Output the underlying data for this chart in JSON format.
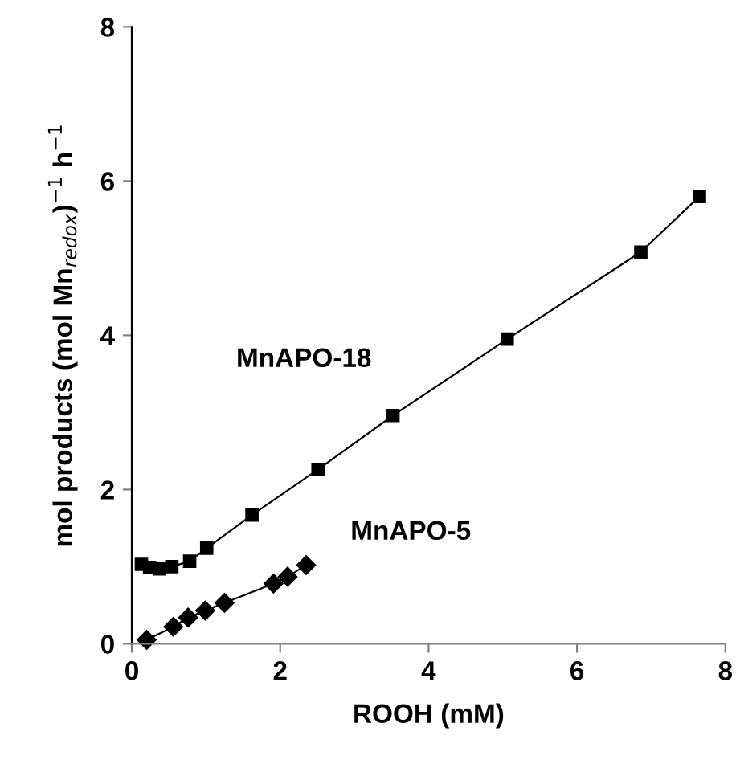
{
  "chart_data": {
    "type": "line",
    "xlabel": "ROOH (mM)",
    "ylabel": "mol products (mol Mn$_{redox}$)$^{−1}$ h$^{−1}$",
    "xlim": [
      0,
      8
    ],
    "ylim": [
      0,
      8
    ],
    "xticks": [
      0,
      2,
      4,
      6,
      8
    ],
    "yticks": [
      0,
      2,
      4,
      6,
      8
    ],
    "grid": false,
    "legend": false,
    "line_style": "solid",
    "series": [
      {
        "name": "MnAPO-18",
        "color": "#000000",
        "marker": "square",
        "x": [
          0.13,
          0.24,
          0.37,
          0.54,
          0.78,
          1.01,
          1.62,
          2.51,
          3.52,
          5.06,
          6.86,
          7.65
        ],
        "values": [
          1.03,
          0.99,
          0.97,
          1.0,
          1.07,
          1.24,
          1.67,
          2.26,
          2.96,
          3.95,
          5.08,
          5.8
        ]
      },
      {
        "name": "MnAPO-5",
        "color": "#000000",
        "marker": "diamond",
        "x": [
          0.2,
          0.56,
          0.76,
          0.99,
          1.25,
          1.91,
          2.1,
          2.35
        ],
        "values": [
          0.05,
          0.22,
          0.34,
          0.43,
          0.53,
          0.78,
          0.87,
          1.02
        ]
      }
    ]
  }
}
